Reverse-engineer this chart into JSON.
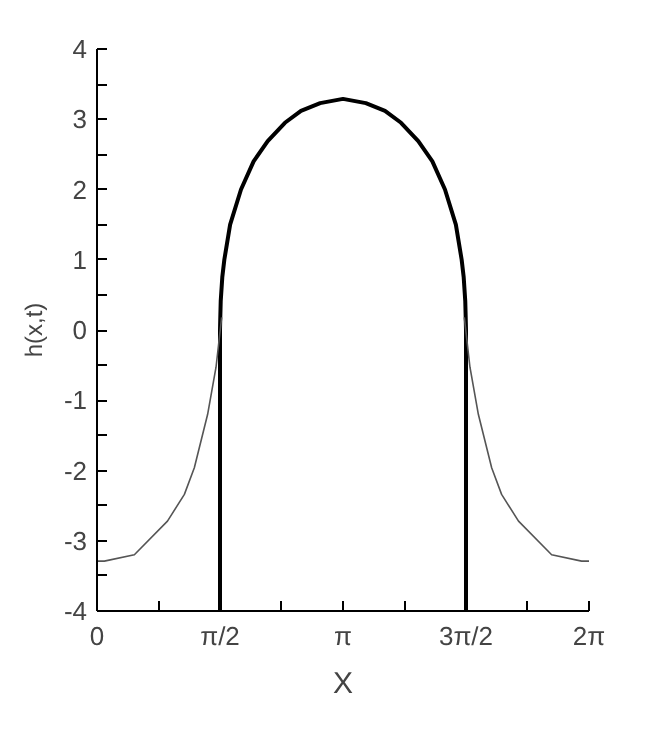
{
  "chart_data": {
    "type": "line",
    "xlabel": "X",
    "ylabel": "h(x,t)",
    "series": [
      {
        "color": "#000000",
        "x": [
          1.5708,
          1.5708,
          1.575,
          1.58,
          1.6,
          1.626,
          1.7,
          1.839,
          2.0,
          2.18,
          2.4,
          2.605,
          2.85,
          3.1416,
          3.433,
          3.678,
          3.883,
          4.103,
          4.283,
          4.444,
          4.583,
          4.657,
          4.683,
          4.703,
          4.708,
          4.7124,
          4.7124
        ],
        "values": [
          -4,
          0,
          0.2,
          0.41,
          0.75,
          1.0,
          1.5,
          2.0,
          2.4,
          2.69,
          2.95,
          3.12,
          3.23,
          3.29,
          3.23,
          3.12,
          2.95,
          2.69,
          2.4,
          2.0,
          1.5,
          1.0,
          0.75,
          0.41,
          0.2,
          0,
          -4
        ]
      },
      {
        "color": "#555555",
        "x": [
          0,
          0.094,
          0.477,
          0.9,
          1.116,
          1.243,
          1.413,
          1.52,
          1.592
        ],
        "values": [
          -3.29,
          -3.29,
          -3.2,
          -2.72,
          -2.34,
          -1.96,
          -1.2,
          -0.53,
          0.18
        ]
      },
      {
        "color": "#555555",
        "x": [
          4.691,
          4.763,
          4.87,
          5.04,
          5.167,
          5.383,
          5.806,
          6.189,
          6.2832
        ],
        "values": [
          0.18,
          -0.53,
          -1.2,
          -1.96,
          -2.34,
          -2.72,
          -3.2,
          -3.29,
          -3.29
        ]
      }
    ],
    "xlim": [
      0,
      6.2832
    ],
    "ylim": [
      -4,
      4
    ],
    "xticks": [
      {
        "value": 0,
        "label": "0"
      },
      {
        "value": 0.7854,
        "label": null
      },
      {
        "value": 1.5708,
        "label": "π/2"
      },
      {
        "value": 2.3562,
        "label": null
      },
      {
        "value": 3.1416,
        "label": "π"
      },
      {
        "value": 3.927,
        "label": null
      },
      {
        "value": 4.7124,
        "label": "3π/2"
      },
      {
        "value": 5.4978,
        "label": null
      },
      {
        "value": 6.2832,
        "label": "2π"
      }
    ],
    "yticks": [
      -4,
      {
        "value": -3.5,
        "label": null
      },
      -3,
      {
        "value": -2.5,
        "label": null
      },
      -2,
      {
        "value": -1.5,
        "label": null
      },
      -1,
      {
        "value": -0.5,
        "label": null
      },
      0,
      {
        "value": 0.5,
        "label": null
      },
      1,
      {
        "value": 1.5,
        "label": null
      },
      2,
      {
        "value": 2.5,
        "label": null
      },
      3,
      {
        "value": 3.5,
        "label": null
      },
      4
    ],
    "grid": false
  }
}
